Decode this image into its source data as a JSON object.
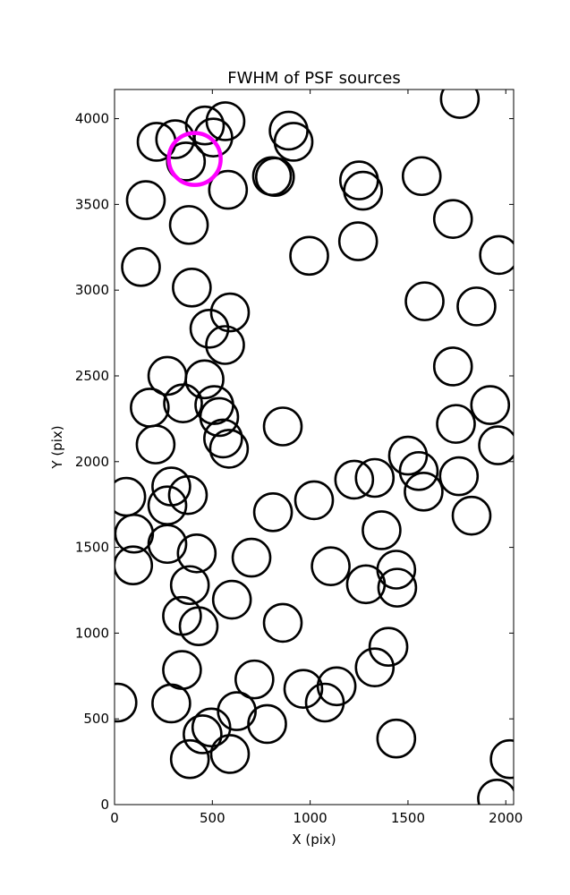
{
  "chart_data": {
    "type": "scatter",
    "title": "FWHM of PSF sources",
    "xlabel": "X (pix)",
    "ylabel": "Y (pix)",
    "xlim": [
      0,
      2040
    ],
    "ylim": [
      0,
      4170
    ],
    "xticks": [
      0,
      500,
      1000,
      1500,
      2000
    ],
    "yticks": [
      0,
      500,
      1000,
      1500,
      2000,
      2500,
      3000,
      3500,
      4000
    ],
    "grid": false,
    "legend": "none",
    "marker": "open-circle",
    "marker_color": "#000000",
    "highlight_color": "#ff00ff",
    "series": [
      {
        "points": [
          [
            462,
            3960
          ],
          [
            567,
            3985
          ],
          [
            215,
            3865
          ],
          [
            310,
            3880
          ],
          [
            505,
            3890
          ],
          [
            365,
            3750
          ],
          [
            160,
            3525
          ],
          [
            580,
            3585
          ],
          [
            380,
            3380
          ],
          [
            135,
            3135
          ],
          [
            395,
            3015
          ],
          [
            590,
            2870
          ],
          [
            485,
            2775
          ],
          [
            565,
            2680
          ],
          [
            270,
            2500
          ],
          [
            460,
            2480
          ],
          [
            180,
            2315
          ],
          [
            350,
            2340
          ],
          [
            510,
            2330
          ],
          [
            535,
            2260
          ],
          [
            555,
            2135
          ],
          [
            585,
            2075
          ],
          [
            210,
            2100
          ],
          [
            60,
            1795
          ],
          [
            290,
            1855
          ],
          [
            375,
            1805
          ],
          [
            270,
            1745
          ],
          [
            100,
            1580
          ],
          [
            270,
            1520
          ],
          [
            420,
            1465
          ],
          [
            95,
            1395
          ],
          [
            385,
            1280
          ],
          [
            345,
            1100
          ],
          [
            430,
            1040
          ],
          [
            600,
            1195
          ],
          [
            700,
            1440
          ],
          [
            810,
            1705
          ],
          [
            1020,
            1775
          ],
          [
            860,
            1060
          ],
          [
            345,
            785
          ],
          [
            715,
            730
          ],
          [
            290,
            590
          ],
          [
            15,
            595
          ],
          [
            625,
            545
          ],
          [
            780,
            470
          ],
          [
            495,
            450
          ],
          [
            450,
            410
          ],
          [
            590,
            295
          ],
          [
            385,
            265
          ],
          [
            860,
            2205
          ],
          [
            890,
            3930
          ],
          [
            915,
            3865
          ],
          [
            805,
            3665
          ],
          [
            820,
            3660
          ],
          [
            995,
            3200
          ],
          [
            1250,
            3640
          ],
          [
            1270,
            3580
          ],
          [
            1245,
            3285
          ],
          [
            1570,
            3665
          ],
          [
            1730,
            3415
          ],
          [
            1585,
            2935
          ],
          [
            1965,
            3205
          ],
          [
            1850,
            2905
          ],
          [
            1730,
            2555
          ],
          [
            1745,
            2220
          ],
          [
            1920,
            2330
          ],
          [
            1960,
            2095
          ],
          [
            1500,
            2035
          ],
          [
            1555,
            1945
          ],
          [
            1580,
            1825
          ],
          [
            1760,
            1915
          ],
          [
            1825,
            1685
          ],
          [
            1225,
            1895
          ],
          [
            1330,
            1905
          ],
          [
            1365,
            1600
          ],
          [
            1105,
            1390
          ],
          [
            1285,
            1285
          ],
          [
            1440,
            1370
          ],
          [
            1445,
            1265
          ],
          [
            1400,
            920
          ],
          [
            1330,
            800
          ],
          [
            965,
            675
          ],
          [
            1075,
            595
          ],
          [
            1135,
            690
          ],
          [
            1440,
            385
          ],
          [
            1955,
            35
          ],
          [
            2020,
            265
          ],
          [
            1765,
            4115
          ]
        ]
      }
    ],
    "highlight": [
      410,
      3765
    ]
  }
}
